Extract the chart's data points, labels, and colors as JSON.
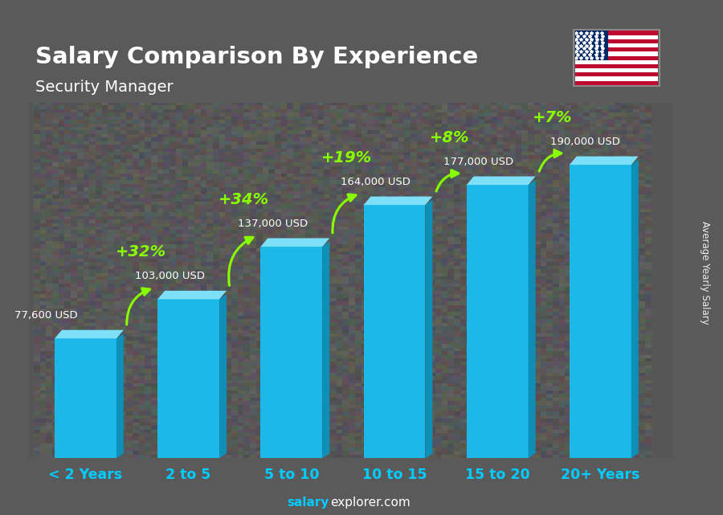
{
  "title": "Salary Comparison By Experience",
  "subtitle": "Security Manager",
  "categories": [
    "< 2 Years",
    "2 to 5",
    "5 to 10",
    "10 to 15",
    "15 to 20",
    "20+ Years"
  ],
  "values": [
    77600,
    103000,
    137000,
    164000,
    177000,
    190000
  ],
  "salary_labels": [
    "77,600 USD",
    "103,000 USD",
    "137,000 USD",
    "164,000 USD",
    "177,000 USD",
    "190,000 USD"
  ],
  "pct_changes": [
    "+32%",
    "+34%",
    "+19%",
    "+8%",
    "+7%"
  ],
  "bar_face_color": "#1CB8E8",
  "bar_right_color": "#0E8FB8",
  "bar_top_color": "#7DE0F8",
  "bg_color": "#5a5a5a",
  "title_color": "#FFFFFF",
  "subtitle_color": "#FFFFFF",
  "salary_label_color": "#FFFFFF",
  "pct_color": "#88FF00",
  "xtick_color": "#00CCFF",
  "ylabel_text": "Average Yearly Salary",
  "footer_bold": "salary",
  "footer_normal": "explorer.com",
  "ylim": [
    0,
    230000
  ]
}
